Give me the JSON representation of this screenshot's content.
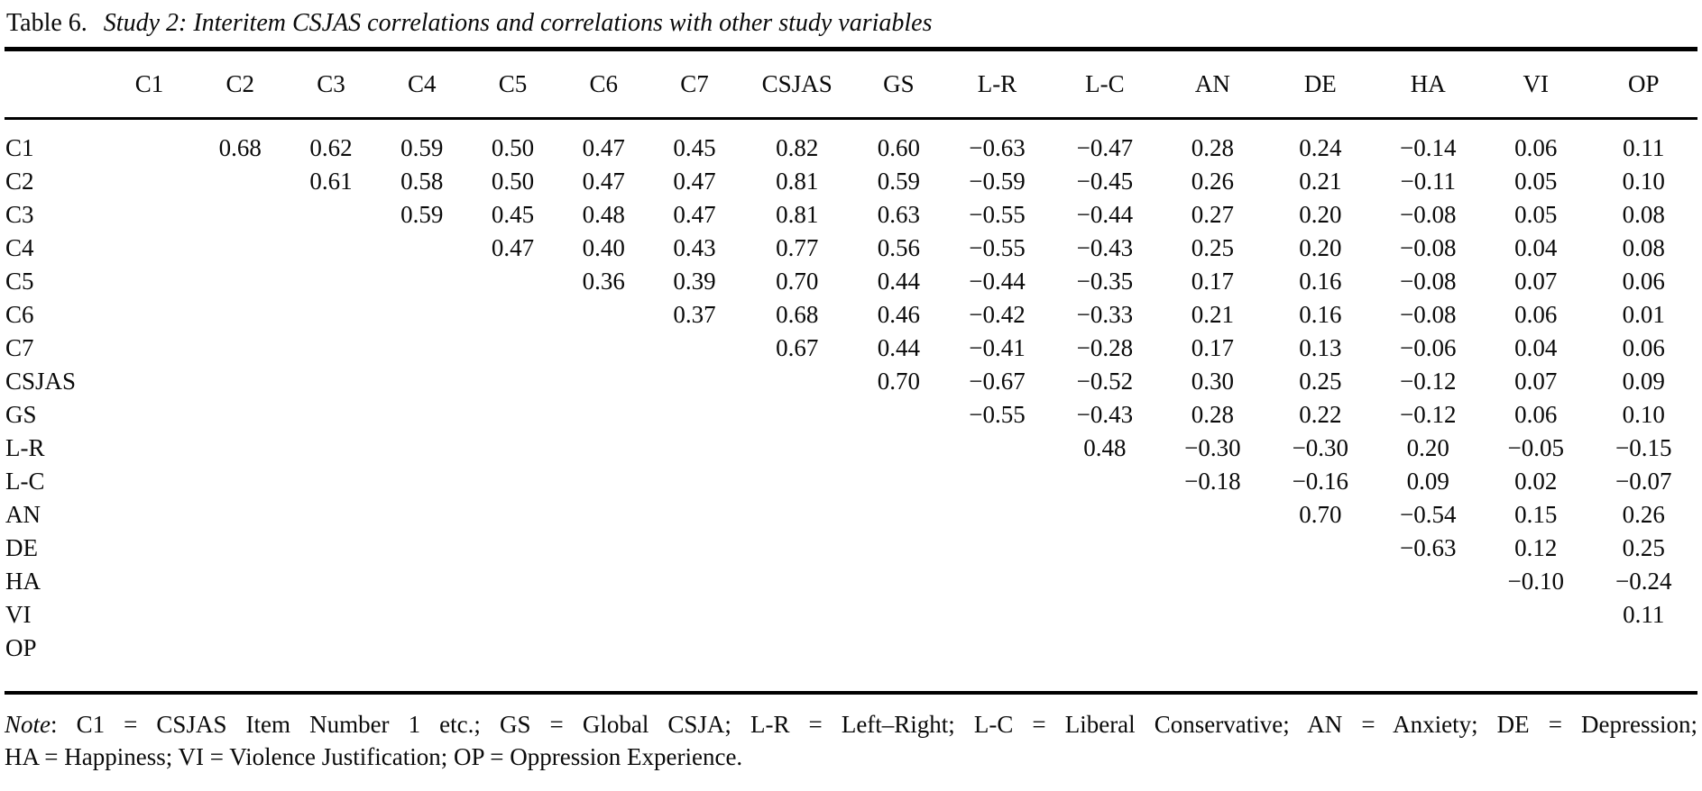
{
  "colors": {
    "text": "#0a0a0a",
    "background": "#ffffff",
    "rule": "#000000"
  },
  "title": {
    "prefix": "Table 6.",
    "subtitle": "Study 2: Interitem CSJAS correlations and correlations with other study variables"
  },
  "table": {
    "columns": [
      "C1",
      "C2",
      "C3",
      "C4",
      "C5",
      "C6",
      "C7",
      "CSJAS",
      "GS",
      "L-R",
      "L-C",
      "AN",
      "DE",
      "HA",
      "VI",
      "OP"
    ],
    "rows": [
      {
        "label": "C1",
        "values": [
          "",
          "0.68",
          "0.62",
          "0.59",
          "0.50",
          "0.47",
          "0.45",
          "0.82",
          "0.60",
          "−0.63",
          "−0.47",
          "0.28",
          "0.24",
          "−0.14",
          "0.06",
          "0.11"
        ]
      },
      {
        "label": "C2",
        "values": [
          "",
          "",
          "0.61",
          "0.58",
          "0.50",
          "0.47",
          "0.47",
          "0.81",
          "0.59",
          "−0.59",
          "−0.45",
          "0.26",
          "0.21",
          "−0.11",
          "0.05",
          "0.10"
        ]
      },
      {
        "label": "C3",
        "values": [
          "",
          "",
          "",
          "0.59",
          "0.45",
          "0.48",
          "0.47",
          "0.81",
          "0.63",
          "−0.55",
          "−0.44",
          "0.27",
          "0.20",
          "−0.08",
          "0.05",
          "0.08"
        ]
      },
      {
        "label": "C4",
        "values": [
          "",
          "",
          "",
          "",
          "0.47",
          "0.40",
          "0.43",
          "0.77",
          "0.56",
          "−0.55",
          "−0.43",
          "0.25",
          "0.20",
          "−0.08",
          "0.04",
          "0.08"
        ]
      },
      {
        "label": "C5",
        "values": [
          "",
          "",
          "",
          "",
          "",
          "0.36",
          "0.39",
          "0.70",
          "0.44",
          "−0.44",
          "−0.35",
          "0.17",
          "0.16",
          "−0.08",
          "0.07",
          "0.06"
        ]
      },
      {
        "label": "C6",
        "values": [
          "",
          "",
          "",
          "",
          "",
          "",
          "0.37",
          "0.68",
          "0.46",
          "−0.42",
          "−0.33",
          "0.21",
          "0.16",
          "−0.08",
          "0.06",
          "0.01"
        ]
      },
      {
        "label": "C7",
        "values": [
          "",
          "",
          "",
          "",
          "",
          "",
          "",
          "0.67",
          "0.44",
          "−0.41",
          "−0.28",
          "0.17",
          "0.13",
          "−0.06",
          "0.04",
          "0.06"
        ]
      },
      {
        "label": "CSJAS",
        "values": [
          "",
          "",
          "",
          "",
          "",
          "",
          "",
          "",
          "0.70",
          "−0.67",
          "−0.52",
          "0.30",
          "0.25",
          "−0.12",
          "0.07",
          "0.09"
        ]
      },
      {
        "label": "GS",
        "values": [
          "",
          "",
          "",
          "",
          "",
          "",
          "",
          "",
          "",
          "−0.55",
          "−0.43",
          "0.28",
          "0.22",
          "−0.12",
          "0.06",
          "0.10"
        ]
      },
      {
        "label": "L-R",
        "values": [
          "",
          "",
          "",
          "",
          "",
          "",
          "",
          "",
          "",
          "",
          "0.48",
          "−0.30",
          "−0.30",
          "0.20",
          "−0.05",
          "−0.15"
        ]
      },
      {
        "label": "L-C",
        "values": [
          "",
          "",
          "",
          "",
          "",
          "",
          "",
          "",
          "",
          "",
          "",
          "−0.18",
          "−0.16",
          "0.09",
          "0.02",
          "−0.07"
        ]
      },
      {
        "label": "AN",
        "values": [
          "",
          "",
          "",
          "",
          "",
          "",
          "",
          "",
          "",
          "",
          "",
          "",
          "0.70",
          "−0.54",
          "0.15",
          "0.26"
        ]
      },
      {
        "label": "DE",
        "values": [
          "",
          "",
          "",
          "",
          "",
          "",
          "",
          "",
          "",
          "",
          "",
          "",
          "",
          "−0.63",
          "0.12",
          "0.25"
        ]
      },
      {
        "label": "HA",
        "values": [
          "",
          "",
          "",
          "",
          "",
          "",
          "",
          "",
          "",
          "",
          "",
          "",
          "",
          "",
          "−0.10",
          "−0.24"
        ]
      },
      {
        "label": "VI",
        "values": [
          "",
          "",
          "",
          "",
          "",
          "",
          "",
          "",
          "",
          "",
          "",
          "",
          "",
          "",
          "",
          "0.11"
        ]
      },
      {
        "label": "OP",
        "values": [
          "",
          "",
          "",
          "",
          "",
          "",
          "",
          "",
          "",
          "",
          "",
          "",
          "",
          "",
          "",
          ""
        ]
      }
    ]
  },
  "note": {
    "label": "Note",
    "line1_rest": ": C1 = CSJAS Item Number 1 etc.; GS = Global CSJA; L-R = Left–Right; L-C = Liberal Conservative; AN = Anxiety; DE = Depression;",
    "line2": "HA = Happiness; VI = Violence Justification; OP = Oppression Experience."
  }
}
